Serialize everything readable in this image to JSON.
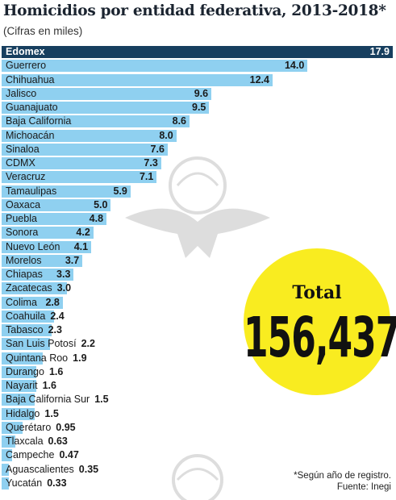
{
  "header": {
    "title": "Homicidios por entidad federativa, 2013-2018*",
    "subtitle": "(Cifras en miles)"
  },
  "total": {
    "label": "Total",
    "value": "156,437"
  },
  "footnote": {
    "note": "*Según año de registro.",
    "source": "Fuente: Inegi"
  },
  "colors": {
    "bar": "#8fd0f0",
    "top_bar": "#173f5f",
    "circle": "#f9ec20",
    "title": "#1b2430"
  },
  "chart_data": {
    "type": "bar",
    "orientation": "horizontal",
    "title": "Homicidios por entidad federativa, 2013-2018*",
    "subtitle": "(Cifras en miles)",
    "xlabel": "",
    "ylabel": "",
    "xlim": [
      0,
      17.9
    ],
    "grid": false,
    "categories": [
      "Edomex",
      "Guerrero",
      "Chihuahua",
      "Jalisco",
      "Guanajuato",
      "Baja California",
      "Michoacán",
      "Sinaloa",
      "CDMX",
      "Veracruz",
      "Tamaulipas",
      "Oaxaca",
      "Puebla",
      "Sonora",
      "Nuevo León",
      "Morelos",
      "Chiapas",
      "Zacatecas",
      "Colima",
      "Coahuila",
      "Tabasco",
      "San Luis Potosí",
      "Quintana Roo",
      "Durango",
      "Nayarit",
      "Baja California Sur",
      "Hidalgo",
      "Querétaro",
      "Tlaxcala",
      "Campeche",
      "Aguascalientes",
      "Yucatán"
    ],
    "values": [
      17.9,
      14.0,
      12.4,
      9.6,
      9.5,
      8.6,
      8.0,
      7.6,
      7.3,
      7.1,
      5.9,
      5.0,
      4.8,
      4.2,
      4.1,
      3.7,
      3.3,
      3.0,
      2.8,
      2.4,
      2.3,
      2.2,
      1.9,
      1.6,
      1.6,
      1.5,
      1.5,
      0.95,
      0.63,
      0.47,
      0.35,
      0.33
    ],
    "value_labels": [
      "17.9",
      "14.0",
      "12.4",
      "9.6",
      "9.5",
      "8.6",
      "8.0",
      "7.6",
      "7.3",
      "7.1",
      "5.9",
      "5.0",
      "4.8",
      "4.2",
      "4.1",
      "3.7",
      "3.3",
      "3.0",
      "2.8",
      "2.4",
      "2.3",
      "2.2",
      "1.9",
      "1.6",
      "1.6",
      "1.5",
      "1.5",
      "0.95",
      "0.63",
      "0.47",
      "0.35",
      "0.33"
    ]
  }
}
